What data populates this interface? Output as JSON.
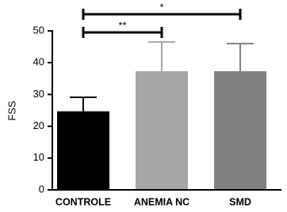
{
  "chart_data": {
    "type": "bar",
    "y_label": "FSS",
    "categories": [
      "CONTROLE",
      "ANEMIA NC",
      "SMD"
    ],
    "series": [
      {
        "name": "FSS",
        "colors": [
          "#000000",
          "#a6a6a8",
          "#808080"
        ],
        "values": [
          24.7,
          37.3,
          37.3
        ],
        "errors": [
          4.4,
          9.2,
          8.7
        ]
      }
    ],
    "ylim": [
      0,
      50
    ],
    "yticks": [
      0,
      10,
      20,
      30,
      40,
      50
    ],
    "comparisons": [
      {
        "label": "*",
        "from": "CONTROLE",
        "to": "SMD"
      },
      {
        "label": "**",
        "from": "CONTROLE",
        "to": "ANEMIA NC"
      }
    ]
  }
}
